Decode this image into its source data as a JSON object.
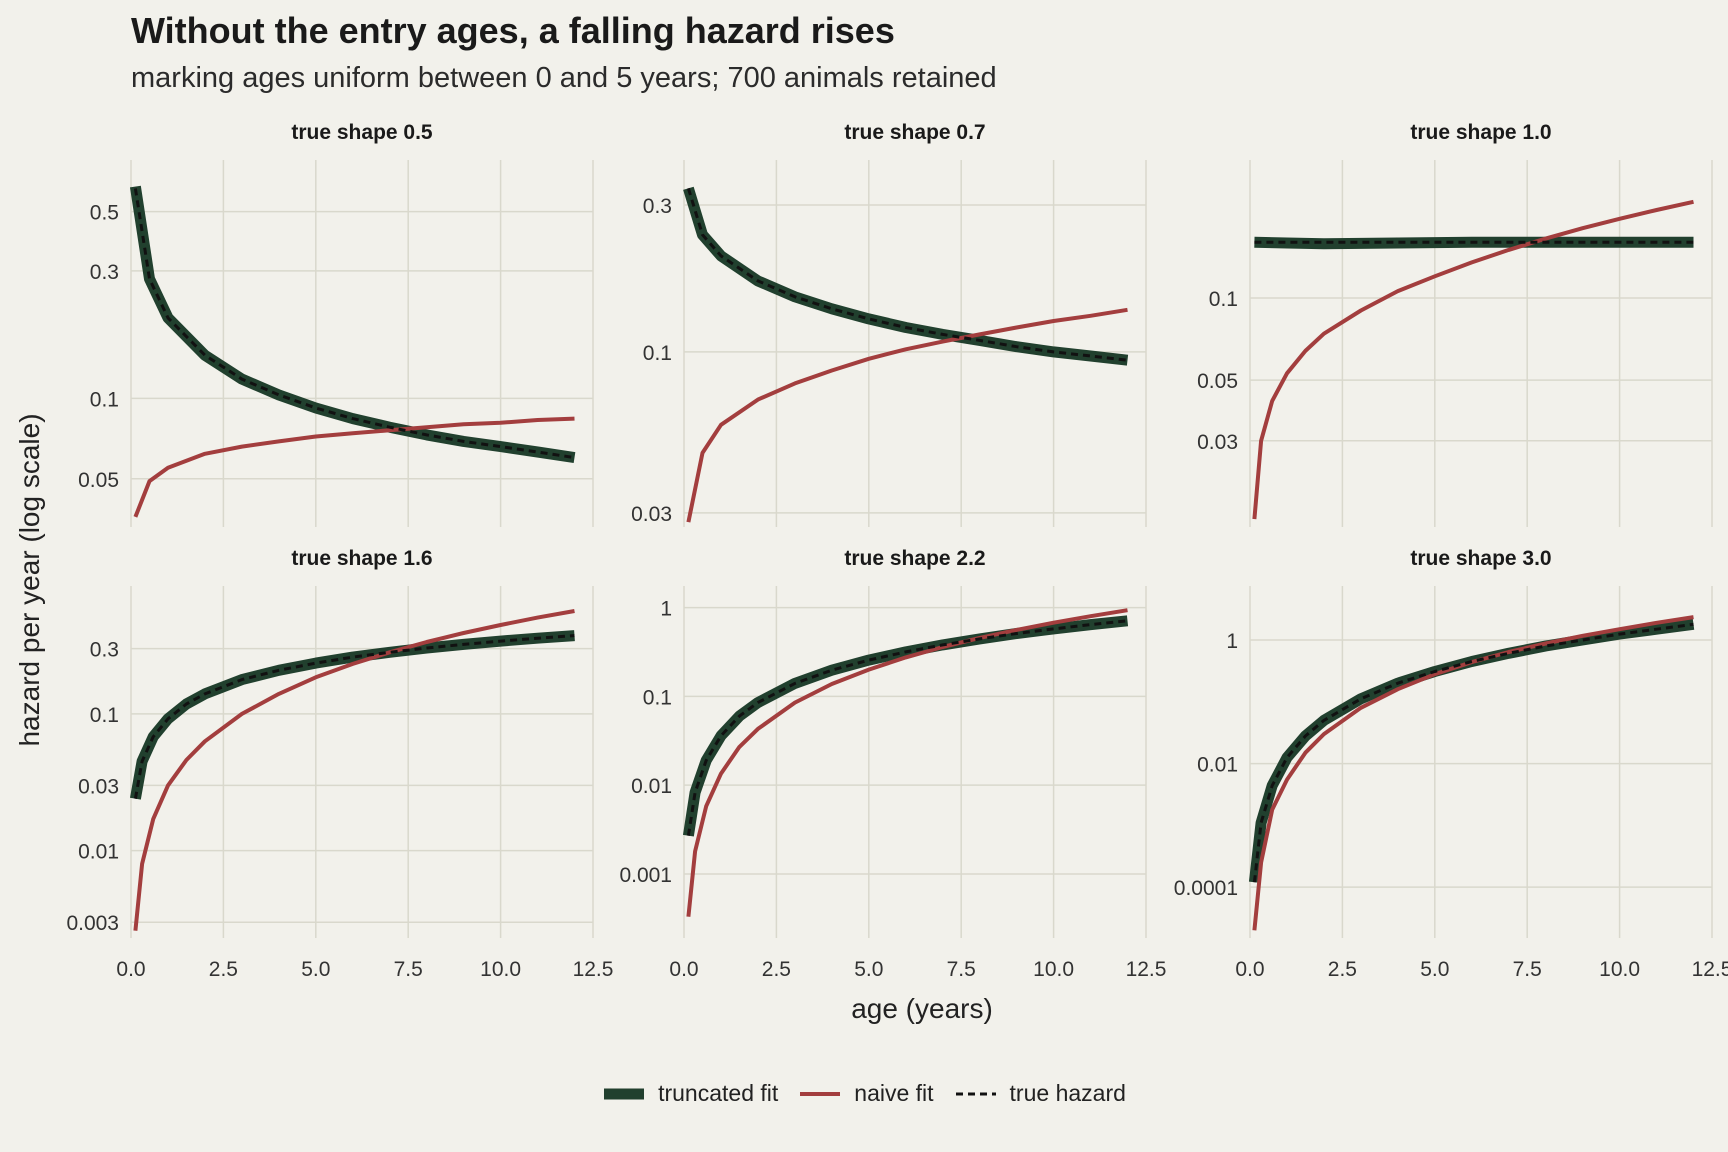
{
  "title": "Without the entry ages, a falling hazard rises",
  "subtitle": "marking ages uniform between 0 and 5 years; 700 animals retained",
  "colors": {
    "truncated": "#21402e",
    "naive": "#a33e3e",
    "true": "#111111",
    "grid": "#d9d8cc",
    "background": "#f2f1eb"
  },
  "chart_data": {
    "type": "line",
    "xlabel": "age (years)",
    "ylabel": "hazard per year (log scale)",
    "x_scale": "linear",
    "y_scale": "log",
    "xlim": [
      0,
      12.5
    ],
    "xticks": [
      0,
      2.5,
      5,
      7.5,
      10,
      12.5
    ],
    "xtick_labels": [
      "0.0",
      "2.5",
      "5.0",
      "7.5",
      "10.0",
      "12.5"
    ],
    "legend": {
      "position": "bottom",
      "entries": [
        "truncated fit",
        "naive fit",
        "true hazard"
      ]
    },
    "panels": [
      {
        "label": "true shape 0.5",
        "ylim": [
          0.033,
          0.78
        ],
        "yticks": [
          0.05,
          0.1,
          0.3,
          0.5
        ],
        "ytick_labels": [
          "0.05",
          "0.1",
          "0.3",
          "0.5"
        ],
        "series": [
          {
            "name": "truncated fit",
            "x": [
              0.12,
              0.5,
              1,
              2,
              3,
              4,
              5,
              6,
              7,
              8,
              9,
              10,
              11,
              12
            ],
            "y": [
              0.62,
              0.28,
              0.2,
              0.145,
              0.118,
              0.103,
              0.092,
              0.084,
              0.078,
              0.073,
              0.069,
              0.066,
              0.063,
              0.06
            ]
          },
          {
            "name": "naive fit",
            "x": [
              0.12,
              0.5,
              1,
              2,
              3,
              4,
              5,
              6,
              7,
              8,
              9,
              10,
              11,
              12
            ],
            "y": [
              0.036,
              0.049,
              0.055,
              0.062,
              0.066,
              0.069,
              0.072,
              0.074,
              0.076,
              0.078,
              0.08,
              0.081,
              0.083,
              0.084
            ]
          },
          {
            "name": "true hazard",
            "x": [
              0.12,
              0.5,
              1,
              2,
              3,
              4,
              5,
              6,
              7,
              8,
              9,
              10,
              11,
              12
            ],
            "y": [
              0.61,
              0.28,
              0.2,
              0.145,
              0.118,
              0.103,
              0.092,
              0.084,
              0.078,
              0.073,
              0.069,
              0.066,
              0.063,
              0.06
            ]
          }
        ]
      },
      {
        "label": "true shape 0.7",
        "ylim": [
          0.027,
          0.42
        ],
        "yticks": [
          0.03,
          0.1,
          0.3
        ],
        "ytick_labels": [
          "0.03",
          "0.1",
          "0.3"
        ],
        "series": [
          {
            "name": "truncated fit",
            "x": [
              0.12,
              0.5,
              1,
              2,
              3,
              4,
              5,
              6,
              7,
              8,
              9,
              10,
              11,
              12
            ],
            "y": [
              0.34,
              0.24,
              0.205,
              0.17,
              0.151,
              0.138,
              0.128,
              0.12,
              0.114,
              0.109,
              0.104,
              0.1,
              0.097,
              0.094
            ]
          },
          {
            "name": "naive fit",
            "x": [
              0.12,
              0.5,
              1,
              2,
              3,
              4,
              5,
              6,
              7,
              8,
              9,
              10,
              11,
              12
            ],
            "y": [
              0.028,
              0.047,
              0.058,
              0.07,
              0.079,
              0.087,
              0.095,
              0.102,
              0.108,
              0.114,
              0.12,
              0.126,
              0.131,
              0.137
            ]
          },
          {
            "name": "true hazard",
            "x": [
              0.12,
              0.5,
              1,
              2,
              3,
              4,
              5,
              6,
              7,
              8,
              9,
              10,
              11,
              12
            ],
            "y": [
              0.34,
              0.24,
              0.205,
              0.17,
              0.151,
              0.138,
              0.128,
              0.12,
              0.114,
              0.109,
              0.104,
              0.1,
              0.097,
              0.094
            ]
          }
        ]
      },
      {
        "label": "true shape 1.0",
        "ylim": [
          0.0145,
          0.32
        ],
        "yticks": [
          0.03,
          0.05,
          0.1
        ],
        "ytick_labels": [
          "0.03",
          "0.05",
          "0.1"
        ],
        "series": [
          {
            "name": "truncated fit",
            "x": [
              0.12,
              1,
              2,
              4,
              6,
              8,
              10,
              12
            ],
            "y": [
              0.16,
              0.159,
              0.158,
              0.159,
              0.16,
              0.16,
              0.16,
              0.16
            ]
          },
          {
            "name": "naive fit",
            "x": [
              0.12,
              0.3,
              0.6,
              1,
              1.5,
              2,
              3,
              4,
              5,
              6,
              7,
              8,
              9,
              10,
              11,
              12
            ],
            "y": [
              0.0155,
              0.03,
              0.042,
              0.053,
              0.064,
              0.074,
              0.09,
              0.106,
              0.12,
              0.135,
              0.15,
              0.165,
              0.18,
              0.195,
              0.21,
              0.225
            ]
          },
          {
            "name": "true hazard",
            "x": [
              0.12,
              1,
              2,
              4,
              6,
              8,
              10,
              12
            ],
            "y": [
              0.16,
              0.16,
              0.16,
              0.16,
              0.16,
              0.16,
              0.16,
              0.16
            ]
          }
        ]
      },
      {
        "label": "true shape 1.6",
        "ylim": [
          0.0023,
          0.86
        ],
        "yticks": [
          0.003,
          0.01,
          0.03,
          0.1,
          0.3
        ],
        "ytick_labels": [
          "0.003",
          "0.01",
          "0.03",
          "0.1",
          "0.3"
        ],
        "series": [
          {
            "name": "truncated fit",
            "x": [
              0.12,
              0.3,
              0.6,
              1,
              1.5,
              2,
              3,
              4,
              5,
              6,
              7,
              8,
              9,
              10,
              11,
              12
            ],
            "y": [
              0.024,
              0.045,
              0.068,
              0.092,
              0.118,
              0.14,
              0.178,
              0.208,
              0.235,
              0.26,
              0.282,
              0.303,
              0.322,
              0.34,
              0.357,
              0.373
            ]
          },
          {
            "name": "naive fit",
            "x": [
              0.12,
              0.3,
              0.6,
              1,
              1.5,
              2,
              3,
              4,
              5,
              6,
              7,
              8,
              9,
              10,
              11,
              12
            ],
            "y": [
              0.0026,
              0.008,
              0.017,
              0.03,
              0.046,
              0.063,
              0.1,
              0.14,
              0.185,
              0.232,
              0.282,
              0.335,
              0.39,
              0.446,
              0.505,
              0.565
            ]
          },
          {
            "name": "true hazard",
            "x": [
              0.12,
              0.3,
              0.6,
              1,
              1.5,
              2,
              3,
              4,
              5,
              6,
              7,
              8,
              9,
              10,
              11,
              12
            ],
            "y": [
              0.024,
              0.045,
              0.068,
              0.092,
              0.118,
              0.14,
              0.178,
              0.208,
              0.235,
              0.26,
              0.282,
              0.303,
              0.322,
              0.34,
              0.357,
              0.373
            ]
          }
        ]
      },
      {
        "label": "true shape 2.2",
        "ylim": [
          0.00019,
          1.75
        ],
        "yticks": [
          0.001,
          0.01,
          0.1,
          1
        ],
        "ytick_labels": [
          "0.001",
          "0.01",
          "0.1",
          "1"
        ],
        "series": [
          {
            "name": "truncated fit",
            "x": [
              0.12,
              0.3,
              0.6,
              1,
              1.5,
              2,
              3,
              4,
              5,
              6,
              7,
              8,
              9,
              10,
              11,
              12
            ],
            "y": [
              0.0027,
              0.0083,
              0.019,
              0.036,
              0.06,
              0.085,
              0.14,
              0.197,
              0.256,
              0.317,
              0.38,
              0.444,
              0.51,
              0.576,
              0.643,
              0.71
            ]
          },
          {
            "name": "naive fit",
            "x": [
              0.12,
              0.3,
              0.6,
              1,
              1.5,
              2,
              3,
              4,
              5,
              6,
              7,
              8,
              9,
              10,
              11,
              12
            ],
            "y": [
              0.00033,
              0.0018,
              0.0058,
              0.0135,
              0.027,
              0.043,
              0.085,
              0.138,
              0.2,
              0.275,
              0.36,
              0.455,
              0.56,
              0.675,
              0.8,
              0.935
            ]
          },
          {
            "name": "true hazard",
            "x": [
              0.12,
              0.3,
              0.6,
              1,
              1.5,
              2,
              3,
              4,
              5,
              6,
              7,
              8,
              9,
              10,
              11,
              12
            ],
            "y": [
              0.0027,
              0.0083,
              0.019,
              0.036,
              0.06,
              0.085,
              0.14,
              0.197,
              0.256,
              0.317,
              0.38,
              0.444,
              0.51,
              0.576,
              0.643,
              0.71
            ]
          }
        ]
      },
      {
        "label": "true shape 3.0",
        "ylim": [
          1.5e-05,
          7.5
        ],
        "yticks": [
          0.0001,
          0.01,
          1
        ],
        "ytick_labels": [
          "0.0001",
          "0.01",
          "1"
        ],
        "series": [
          {
            "name": "truncated fit",
            "x": [
              0.12,
              0.3,
              0.6,
              1,
              1.5,
              2,
              3,
              4,
              5,
              6,
              7,
              8,
              9,
              10,
              11,
              12
            ],
            "y": [
              0.00012,
              0.0011,
              0.0044,
              0.0125,
              0.028,
              0.05,
              0.112,
              0.2,
              0.31,
              0.45,
              0.61,
              0.8,
              1.0,
              1.25,
              1.5,
              1.8
            ]
          },
          {
            "name": "naive fit",
            "x": [
              0.12,
              0.3,
              0.6,
              1,
              1.5,
              2,
              3,
              4,
              5,
              6,
              7,
              8,
              9,
              10,
              11,
              12
            ],
            "y": [
              2e-05,
              0.00025,
              0.0018,
              0.0055,
              0.015,
              0.03,
              0.08,
              0.16,
              0.28,
              0.44,
              0.64,
              0.88,
              1.17,
              1.5,
              1.9,
              2.35
            ]
          },
          {
            "name": "true hazard",
            "x": [
              0.12,
              0.3,
              0.6,
              1,
              1.5,
              2,
              3,
              4,
              5,
              6,
              7,
              8,
              9,
              10,
              11,
              12
            ],
            "y": [
              0.00012,
              0.0011,
              0.0044,
              0.0125,
              0.028,
              0.05,
              0.112,
              0.2,
              0.31,
              0.45,
              0.61,
              0.8,
              1.0,
              1.25,
              1.5,
              1.8
            ]
          }
        ]
      }
    ]
  }
}
